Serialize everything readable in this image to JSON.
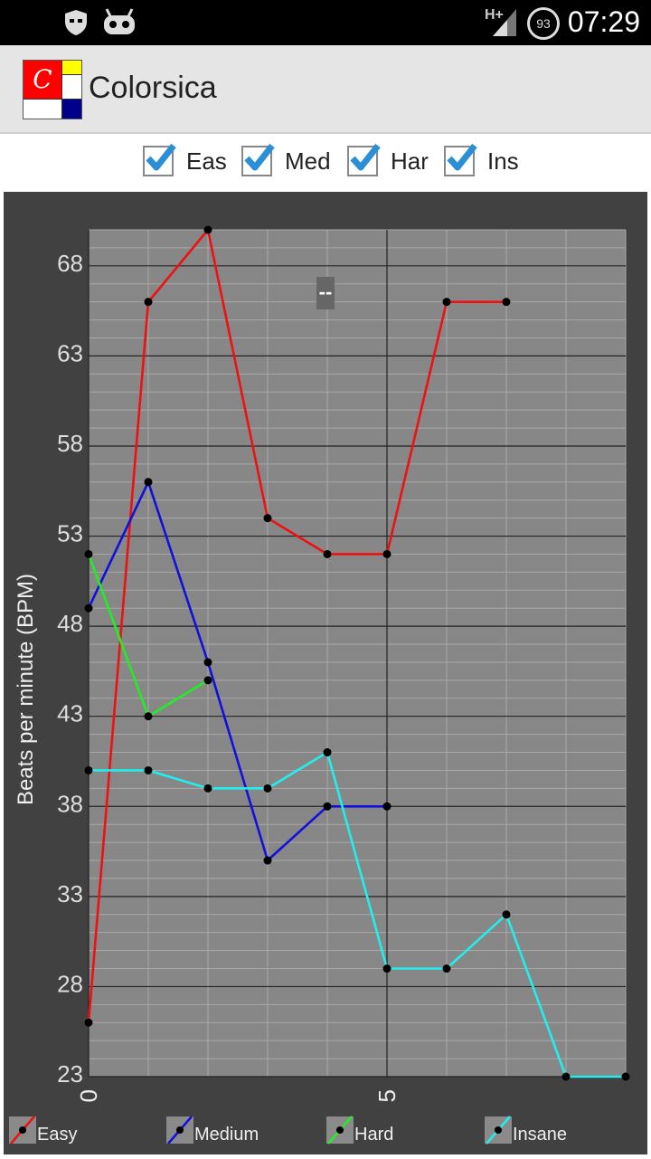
{
  "status_bar": {
    "time": "07:29",
    "network": "H+",
    "battery": "93"
  },
  "app": {
    "title": "Colorsica",
    "logo_letter": "C"
  },
  "filters": [
    {
      "label": "Eas",
      "checked": true
    },
    {
      "label": "Med",
      "checked": true
    },
    {
      "label": "Har",
      "checked": true
    },
    {
      "label": "Ins",
      "checked": true
    }
  ],
  "colors": {
    "easy": "#ee1111",
    "medium": "#1111dd",
    "hard": "#22ee22",
    "insane": "#22eeee",
    "plot_bg": "#878787",
    "frame_bg": "#414141",
    "check": "#2a8fd6"
  },
  "chart_data": {
    "type": "line",
    "ylabel": "Beats per minute (BPM)",
    "xlim": [
      0,
      9
    ],
    "ylim": [
      23,
      70
    ],
    "y_ticks": [
      23,
      28,
      33,
      38,
      43,
      48,
      53,
      58,
      63,
      68
    ],
    "x_ticks": [
      0,
      5
    ],
    "annotation": "--",
    "grid": true,
    "legend_position": "bottom",
    "series": [
      {
        "name": "Easy",
        "color": "#ee1111",
        "points": [
          [
            0,
            26
          ],
          [
            1,
            66
          ],
          [
            2,
            70
          ],
          [
            3,
            54
          ],
          [
            4,
            52
          ],
          [
            5,
            52
          ],
          [
            6,
            66
          ],
          [
            7,
            66
          ]
        ]
      },
      {
        "name": "Medium",
        "color": "#1111dd",
        "points": [
          [
            0,
            49
          ],
          [
            1,
            56
          ],
          [
            2,
            46
          ],
          [
            3,
            35
          ],
          [
            4,
            38
          ],
          [
            5,
            38
          ]
        ]
      },
      {
        "name": "Hard",
        "color": "#22ee22",
        "points": [
          [
            0,
            52
          ],
          [
            1,
            43
          ],
          [
            2,
            45
          ]
        ]
      },
      {
        "name": "Insane",
        "color": "#22eeee",
        "points": [
          [
            0,
            40
          ],
          [
            1,
            40
          ],
          [
            2,
            39
          ],
          [
            3,
            39
          ],
          [
            4,
            41
          ],
          [
            5,
            29
          ],
          [
            6,
            29
          ],
          [
            7,
            32
          ],
          [
            8,
            23
          ],
          [
            9,
            23
          ]
        ]
      }
    ]
  }
}
